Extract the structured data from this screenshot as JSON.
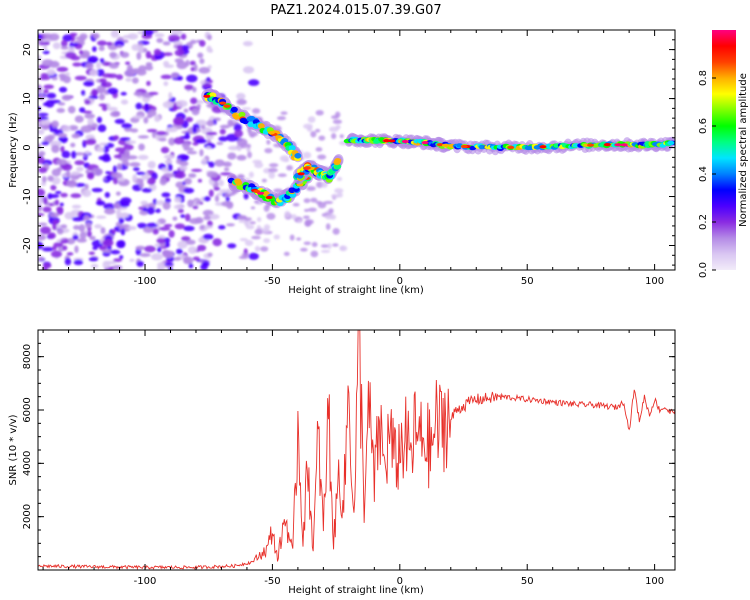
{
  "title": "PAZ1.2024.015.07.39.G07",
  "chart_data": [
    {
      "type": "heatmap",
      "xlabel": "Height of straight line (km)",
      "ylabel": "Frequency (Hz)",
      "xlim": [
        -142,
        108
      ],
      "ylim": [
        -25,
        24
      ],
      "xticks": [
        -100,
        -50,
        0,
        50,
        100
      ],
      "yticks": [
        -20,
        -10,
        0,
        10,
        20
      ],
      "colorbar": {
        "label": "Normalized spectral amplitude",
        "range": [
          0,
          1
        ],
        "ticks": [
          0.0,
          0.2,
          0.4,
          0.6,
          0.8
        ],
        "colors": [
          "#f2ecf9",
          "#d9c6f2",
          "#b48ae6",
          "#8a2be2",
          "#4b00ff",
          "#0000ff",
          "#0080ff",
          "#00e5ff",
          "#00ff80",
          "#00ff00",
          "#80ff00",
          "#ffff00",
          "#ffb000",
          "#ff4000",
          "#ff0000",
          "#ff0080"
        ]
      },
      "features": [
        {
          "name": "upper-branch",
          "points": [
            [
              -76,
              10.5
            ],
            [
              -72,
              10
            ],
            [
              -68,
              8.5
            ],
            [
              -63,
              6.5
            ],
            [
              -57,
              5
            ],
            [
              -52,
              3.5
            ],
            [
              -47,
              2
            ],
            [
              -43,
              0
            ],
            [
              -40,
              -2
            ]
          ]
        },
        {
          "name": "lower-branch",
          "points": [
            [
              -66,
              -7
            ],
            [
              -60,
              -8
            ],
            [
              -56,
              -9
            ],
            [
              -52,
              -10
            ],
            [
              -48,
              -11
            ],
            [
              -44,
              -10
            ],
            [
              -40,
              -8
            ],
            [
              -36,
              -6
            ]
          ]
        },
        {
          "name": "merge-cluster",
          "points": [
            [
              -40,
              -6
            ],
            [
              -36,
              -4
            ],
            [
              -32,
              -5
            ],
            [
              -28,
              -6
            ],
            [
              -24,
              -3
            ]
          ]
        },
        {
          "name": "tail-line",
          "points": [
            [
              -20,
              1.5
            ],
            [
              -12,
              1.5
            ],
            [
              0,
              1.3
            ],
            [
              10,
              1
            ],
            [
              20,
              0.3
            ],
            [
              40,
              0
            ],
            [
              60,
              0.2
            ],
            [
              80,
              0.6
            ],
            [
              95,
              0.5
            ],
            [
              107,
              0.8
            ]
          ]
        }
      ]
    },
    {
      "type": "line",
      "xlabel": "Height of straight line (km)",
      "ylabel": "SNR (10 * v/v)",
      "xlim": [
        -142,
        108
      ],
      "ylim": [
        0,
        9000
      ],
      "xticks": [
        -100,
        -50,
        0,
        50,
        100
      ],
      "yticks": [
        2000,
        4000,
        6000,
        8000
      ],
      "color": "#e8302a",
      "series": [
        {
          "x": [
            -142,
            -120,
            -100,
            -80,
            -65,
            -58,
            -52,
            -50,
            -48,
            -45,
            -42,
            -40,
            -38,
            -36,
            -34,
            -32,
            -30,
            -28,
            -26,
            -24,
            -22,
            -20,
            -18,
            -16,
            -14,
            -12,
            -10,
            -8,
            -6,
            -4,
            -2,
            0,
            2,
            4,
            6,
            8,
            10,
            12,
            14,
            16,
            18,
            20,
            22,
            24,
            26,
            28,
            30,
            32,
            35,
            40,
            45,
            50,
            55,
            60,
            65,
            70,
            75,
            80,
            85,
            88,
            90,
            92,
            94,
            96,
            98,
            100,
            102,
            104,
            106,
            108
          ],
          "y": [
            150,
            120,
            100,
            100,
            150,
            300,
            800,
            1500,
            400,
            2000,
            600,
            5500,
            1200,
            4000,
            700,
            5000,
            1500,
            6000,
            1000,
            3500,
            2500,
            7000,
            1800,
            8800,
            2500,
            6000,
            3200,
            5500,
            3800,
            5200,
            4000,
            4500,
            5000,
            4200,
            5200,
            4800,
            5000,
            4400,
            5500,
            5300,
            5800,
            5600,
            6000,
            6100,
            6200,
            6350,
            6400,
            6400,
            6450,
            6500,
            6450,
            6400,
            6350,
            6300,
            6250,
            6200,
            6200,
            6150,
            6100,
            6300,
            5200,
            6800,
            5600,
            6500,
            5800,
            6400,
            6000,
            6100,
            5900,
            6000
          ]
        }
      ]
    }
  ]
}
